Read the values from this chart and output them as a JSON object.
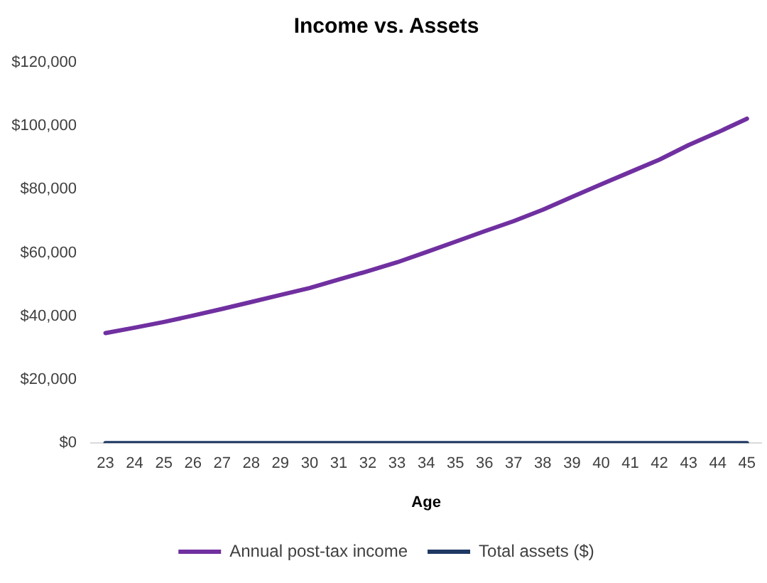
{
  "chart_data": {
    "type": "line",
    "title": "Income vs. Assets",
    "xlabel": "Age",
    "categories": [
      "23",
      "24",
      "25",
      "26",
      "27",
      "28",
      "29",
      "30",
      "31",
      "32",
      "33",
      "34",
      "35",
      "36",
      "37",
      "38",
      "39",
      "40",
      "41",
      "42",
      "43",
      "44",
      "45"
    ],
    "series": [
      {
        "name": "Annual post-tax income",
        "color": "#7030a0",
        "values": [
          34700,
          36400,
          38200,
          40200,
          42300,
          44500,
          46700,
          48900,
          51600,
          54200,
          57000,
          60200,
          63500,
          66800,
          70000,
          73600,
          77600,
          81600,
          85500,
          89400,
          94000,
          98000,
          102300
        ]
      },
      {
        "name": "Total assets ($)",
        "color": "#1f3864",
        "values": [
          0,
          0,
          0,
          0,
          0,
          0,
          0,
          0,
          0,
          0,
          0,
          0,
          0,
          0,
          0,
          0,
          0,
          0,
          0,
          0,
          0,
          0,
          0
        ]
      }
    ],
    "ylim": [
      0,
      120000
    ],
    "yticks": [
      {
        "value": 0,
        "label": "$0"
      },
      {
        "value": 20000,
        "label": "$20,000"
      },
      {
        "value": 40000,
        "label": "$40,000"
      },
      {
        "value": 60000,
        "label": "$60,000"
      },
      {
        "value": 80000,
        "label": "$80,000"
      },
      {
        "value": 100000,
        "label": "$100,000"
      },
      {
        "value": 120000,
        "label": "$120,000"
      }
    ],
    "legend": "bottom",
    "marker": "none",
    "line_style": "solid"
  }
}
